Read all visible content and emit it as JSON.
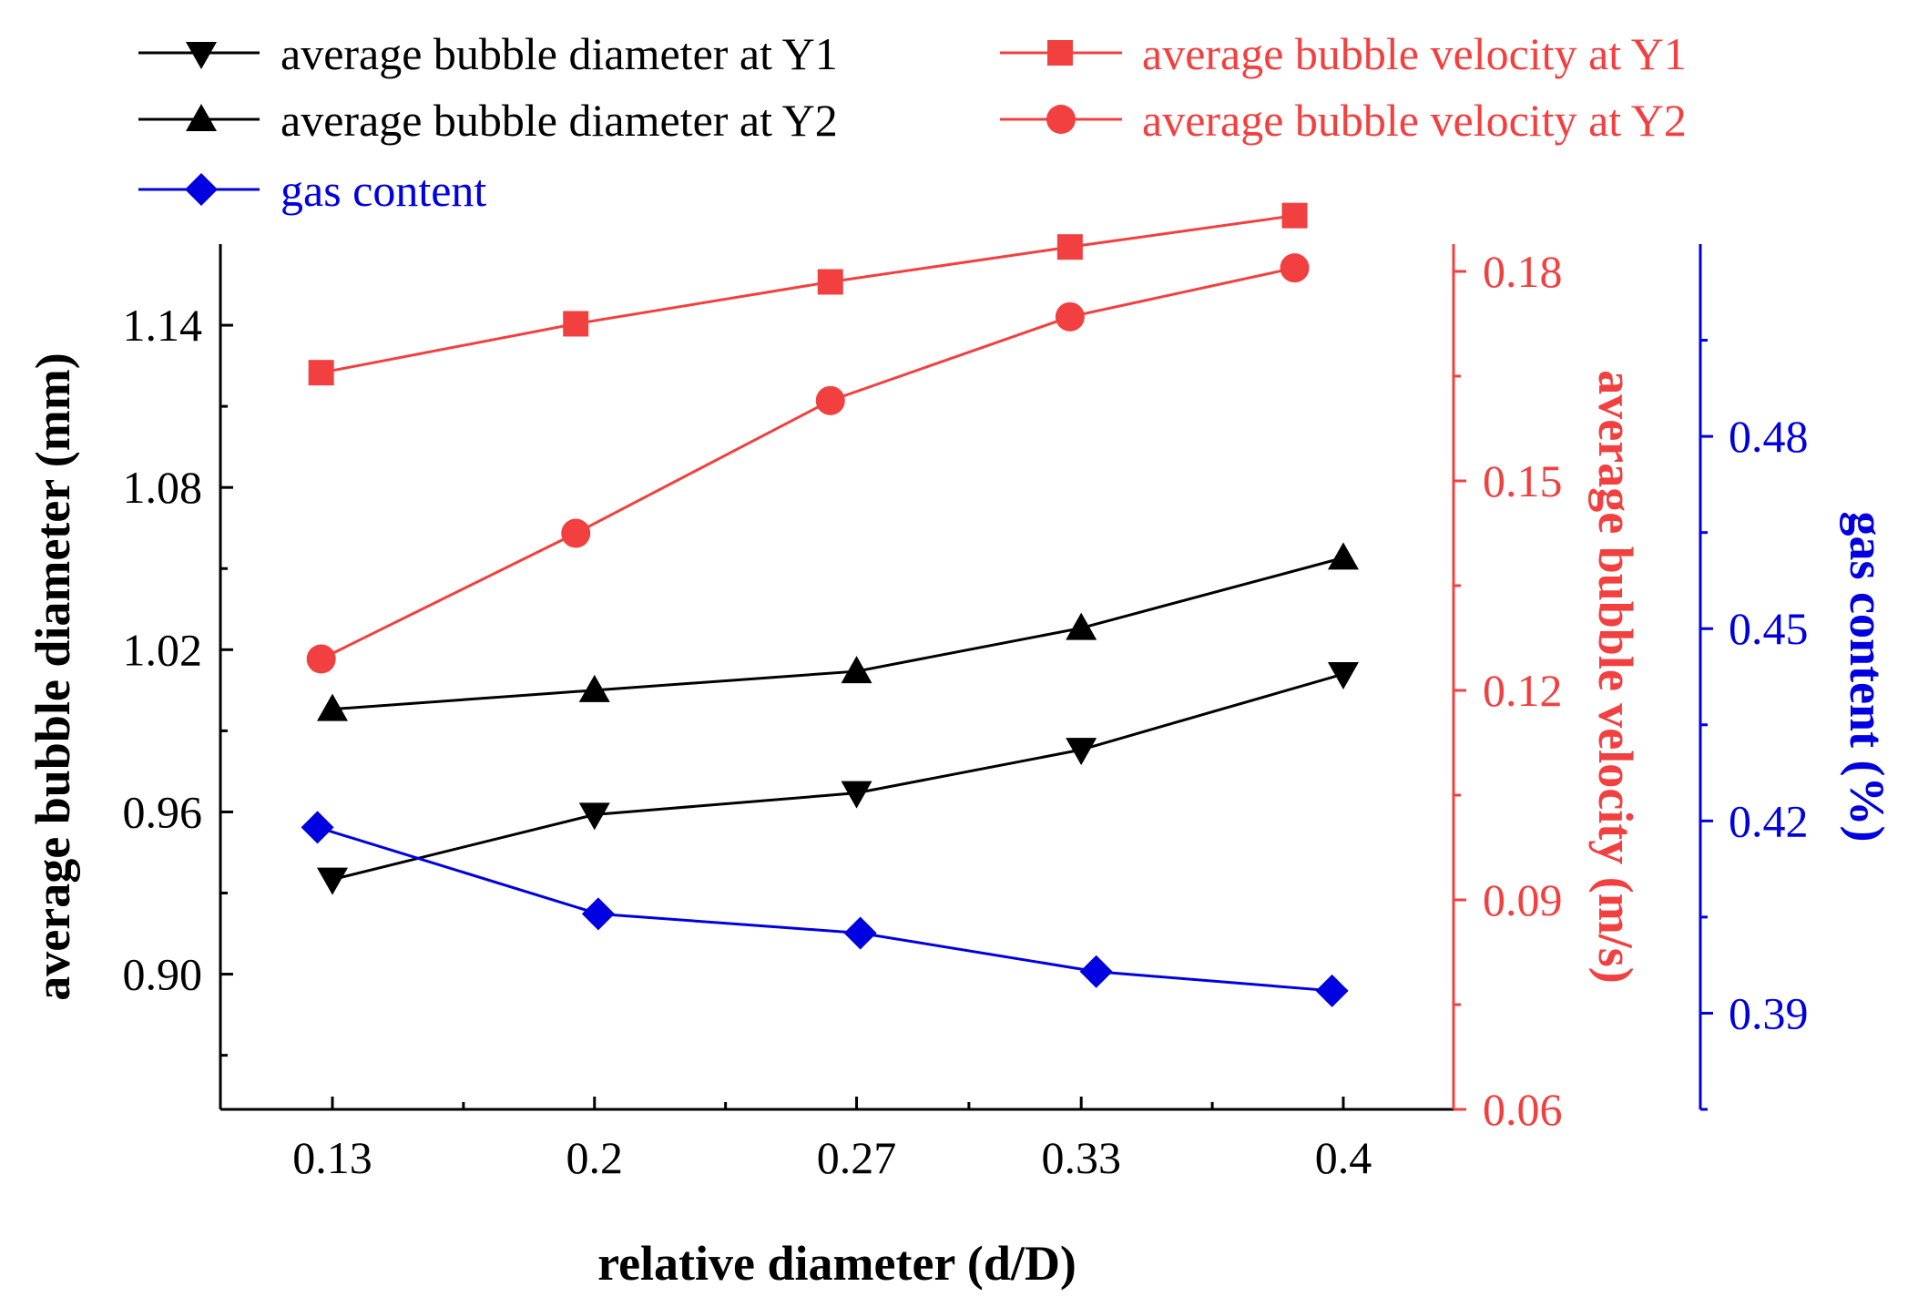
{
  "chart_data": {
    "type": "line",
    "xlabel": "relative diameter (d/D)",
    "categories": [
      "0.13",
      "0.2",
      "0.27",
      "0.33",
      "0.4"
    ],
    "axes": {
      "left": {
        "label": "average bubble diameter (mm)",
        "range": [
          0.85,
          1.17
        ],
        "ticks": [
          "0.90",
          "0.96",
          "1.02",
          "1.08",
          "1.14"
        ],
        "color": "#000000"
      },
      "right1": {
        "label": "average bubble velocity (m/s)",
        "range": [
          0.06,
          0.18
        ],
        "ticks": [
          "0.06",
          "0.09",
          "0.12",
          "0.15",
          "0.18"
        ],
        "color": "#f24040"
      },
      "right2": {
        "label": "gas content (%)",
        "range": [
          0.375,
          0.51
        ],
        "ticks": [
          "0.39",
          "0.42",
          "0.45",
          "0.48"
        ],
        "color": "#0000e0"
      }
    },
    "series": [
      {
        "name": "average bubble diameter at Y1",
        "axis": "left",
        "marker": "triangle-down",
        "color": "#000000",
        "x_positions": [
          0.13,
          0.2,
          0.27,
          0.33,
          0.4
        ],
        "values": [
          0.935,
          0.959,
          0.967,
          0.983,
          1.011
        ]
      },
      {
        "name": "average bubble diameter at Y2",
        "axis": "left",
        "marker": "triangle-up",
        "color": "#000000",
        "x_positions": [
          0.13,
          0.2,
          0.27,
          0.33,
          0.4
        ],
        "values": [
          0.998,
          1.005,
          1.012,
          1.028,
          1.054
        ]
      },
      {
        "name": "average bubble velocity at Y1",
        "axis": "right1",
        "marker": "square",
        "color": "#f24040",
        "x_positions": [
          0.127,
          0.195,
          0.263,
          0.327,
          0.387
        ],
        "values": [
          0.1655,
          0.1725,
          0.1785,
          0.1835,
          0.188
        ]
      },
      {
        "name": "average bubble velocity at Y2",
        "axis": "right1",
        "marker": "circle",
        "color": "#f24040",
        "x_positions": [
          0.127,
          0.195,
          0.263,
          0.327,
          0.387
        ],
        "values": [
          0.1245,
          0.1425,
          0.1615,
          0.1735,
          0.1805
        ]
      },
      {
        "name": "gas content",
        "axis": "right2",
        "marker": "diamond",
        "color": "#0000e0",
        "x_positions": [
          0.126,
          0.201,
          0.271,
          0.334,
          0.397
        ],
        "values": [
          0.419,
          0.4055,
          0.4025,
          0.3965,
          0.3935
        ]
      }
    ],
    "legend_position": "top"
  }
}
